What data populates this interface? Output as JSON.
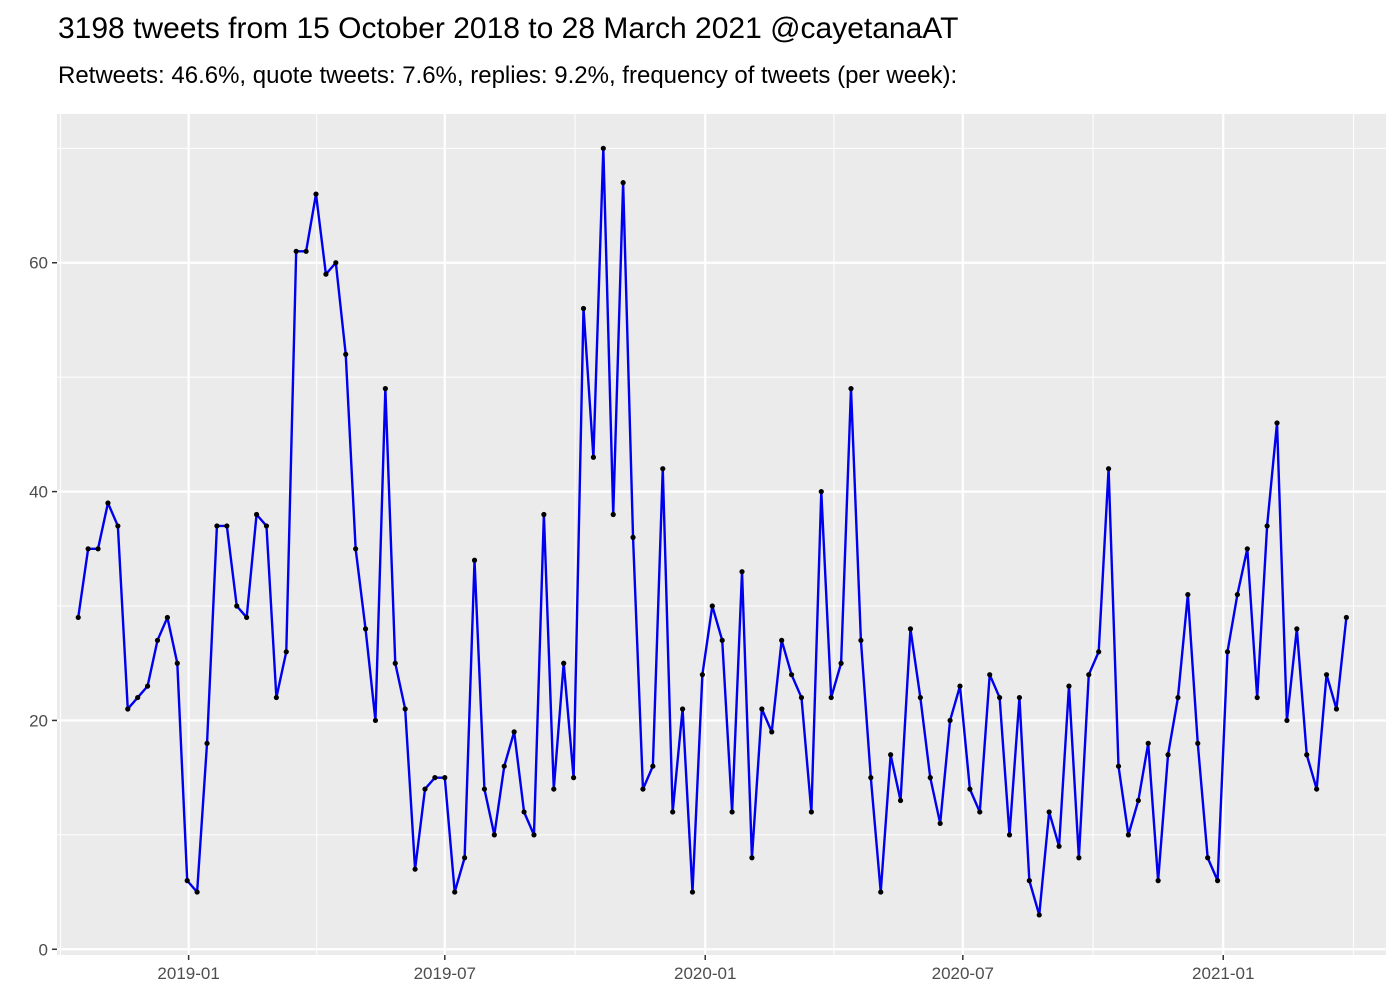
{
  "header": {
    "title": "3198 tweets from 15 October 2018 to 28 March 2021 @cayetanaAT",
    "subtitle": "Retweets: 46.6%, quote tweets: 7.6%, replies: 9.2%, frequency of tweets (per week):"
  },
  "colors": {
    "panel": "#EBEBEB",
    "grid": "#FFFFFF",
    "line": "#0000EE",
    "point": "#000000",
    "tick_text": "#4D4D4D"
  },
  "chart_data": {
    "type": "line",
    "title": "3198 tweets from 15 October 2018 to 28 March 2021 @cayetanaAT",
    "subtitle": "Retweets: 46.6%, quote tweets: 7.6%, replies: 9.2%, frequency of tweets (per week):",
    "xlabel": "",
    "ylabel": "",
    "x_type": "date",
    "x_ticks": [
      "2019-01-01",
      "2019-07-01",
      "2020-01-01",
      "2020-07-01",
      "2021-01-01"
    ],
    "x_tick_labels": [
      "2019-01",
      "2019-07",
      "2020-01",
      "2020-07",
      "2021-01"
    ],
    "y_ticks": [
      0,
      20,
      40,
      60
    ],
    "y_tick_labels": [
      "0",
      "20",
      "40",
      "60"
    ],
    "xlim": [
      "2018-09-30",
      "2021-04-26"
    ],
    "ylim": [
      -0.5,
      73
    ],
    "grid": true,
    "legend": "none",
    "series": [
      {
        "x": [
          "2018-10-15",
          "2018-10-22",
          "2018-10-29",
          "2018-11-05",
          "2018-11-12",
          "2018-11-19",
          "2018-11-26",
          "2018-12-03",
          "2018-12-10",
          "2018-12-17",
          "2018-12-24",
          "2018-12-31",
          "2019-01-07",
          "2019-01-14",
          "2019-01-21",
          "2019-01-28",
          "2019-02-04",
          "2019-02-11",
          "2019-02-18",
          "2019-02-25",
          "2019-03-04",
          "2019-03-11",
          "2019-03-18",
          "2019-03-25",
          "2019-04-01",
          "2019-04-08",
          "2019-04-15",
          "2019-04-22",
          "2019-04-29",
          "2019-05-06",
          "2019-05-13",
          "2019-05-20",
          "2019-05-27",
          "2019-06-03",
          "2019-06-10",
          "2019-06-17",
          "2019-06-24",
          "2019-07-01",
          "2019-07-08",
          "2019-07-15",
          "2019-07-22",
          "2019-07-29",
          "2019-08-05",
          "2019-08-12",
          "2019-08-19",
          "2019-08-26",
          "2019-09-02",
          "2019-09-09",
          "2019-09-16",
          "2019-09-23",
          "2019-09-30",
          "2019-10-07",
          "2019-10-14",
          "2019-10-21",
          "2019-10-28",
          "2019-11-04",
          "2019-11-11",
          "2019-11-18",
          "2019-11-25",
          "2019-12-02",
          "2019-12-09",
          "2019-12-16",
          "2019-12-23",
          "2019-12-30",
          "2020-01-06",
          "2020-01-13",
          "2020-01-20",
          "2020-01-27",
          "2020-02-03",
          "2020-02-10",
          "2020-02-17",
          "2020-02-24",
          "2020-03-02",
          "2020-03-09",
          "2020-03-16",
          "2020-03-23",
          "2020-03-30",
          "2020-04-06",
          "2020-04-13",
          "2020-04-20",
          "2020-04-27",
          "2020-05-04",
          "2020-05-11",
          "2020-05-18",
          "2020-05-25",
          "2020-06-01",
          "2020-06-08",
          "2020-06-15",
          "2020-06-22",
          "2020-06-29",
          "2020-07-06",
          "2020-07-13",
          "2020-07-20",
          "2020-07-27",
          "2020-08-03",
          "2020-08-10",
          "2020-08-17",
          "2020-08-24",
          "2020-08-31",
          "2020-09-07",
          "2020-09-14",
          "2020-09-21",
          "2020-09-28",
          "2020-10-05",
          "2020-10-12",
          "2020-10-19",
          "2020-10-26",
          "2020-11-02",
          "2020-11-09",
          "2020-11-16",
          "2020-11-23",
          "2020-11-30",
          "2020-12-07",
          "2020-12-14",
          "2020-12-21",
          "2020-12-28",
          "2021-01-04",
          "2021-01-11",
          "2021-01-18",
          "2021-01-25",
          "2021-02-01",
          "2021-02-08",
          "2021-02-15",
          "2021-02-22",
          "2021-03-01",
          "2021-03-08",
          "2021-03-15",
          "2021-03-22",
          "2021-03-29"
        ],
        "y": [
          29,
          35,
          35,
          39,
          37,
          21,
          22,
          23,
          27,
          29,
          25,
          6,
          5,
          18,
          37,
          37,
          30,
          29,
          38,
          37,
          22,
          26,
          61,
          61,
          66,
          59,
          60,
          52,
          35,
          28,
          20,
          49,
          25,
          21,
          7,
          14,
          15,
          15,
          5,
          8,
          34,
          14,
          10,
          16,
          19,
          12,
          10,
          38,
          14,
          25,
          15,
          56,
          43,
          70,
          38,
          67,
          36,
          14,
          16,
          42,
          12,
          21,
          5,
          24,
          30,
          27,
          12,
          33,
          8,
          21,
          19,
          27,
          24,
          22,
          12,
          40,
          22,
          25,
          49,
          27,
          15,
          5,
          17,
          13,
          28,
          22,
          15,
          11,
          20,
          23,
          14,
          12,
          24,
          22,
          10,
          22,
          6,
          3,
          12,
          9,
          23,
          8,
          24,
          26,
          42,
          16,
          10,
          13,
          18,
          6,
          17,
          22,
          31,
          18,
          8,
          6,
          26,
          31,
          35,
          22,
          37,
          46,
          20,
          28,
          17,
          14,
          24,
          21,
          29
        ]
      }
    ]
  }
}
